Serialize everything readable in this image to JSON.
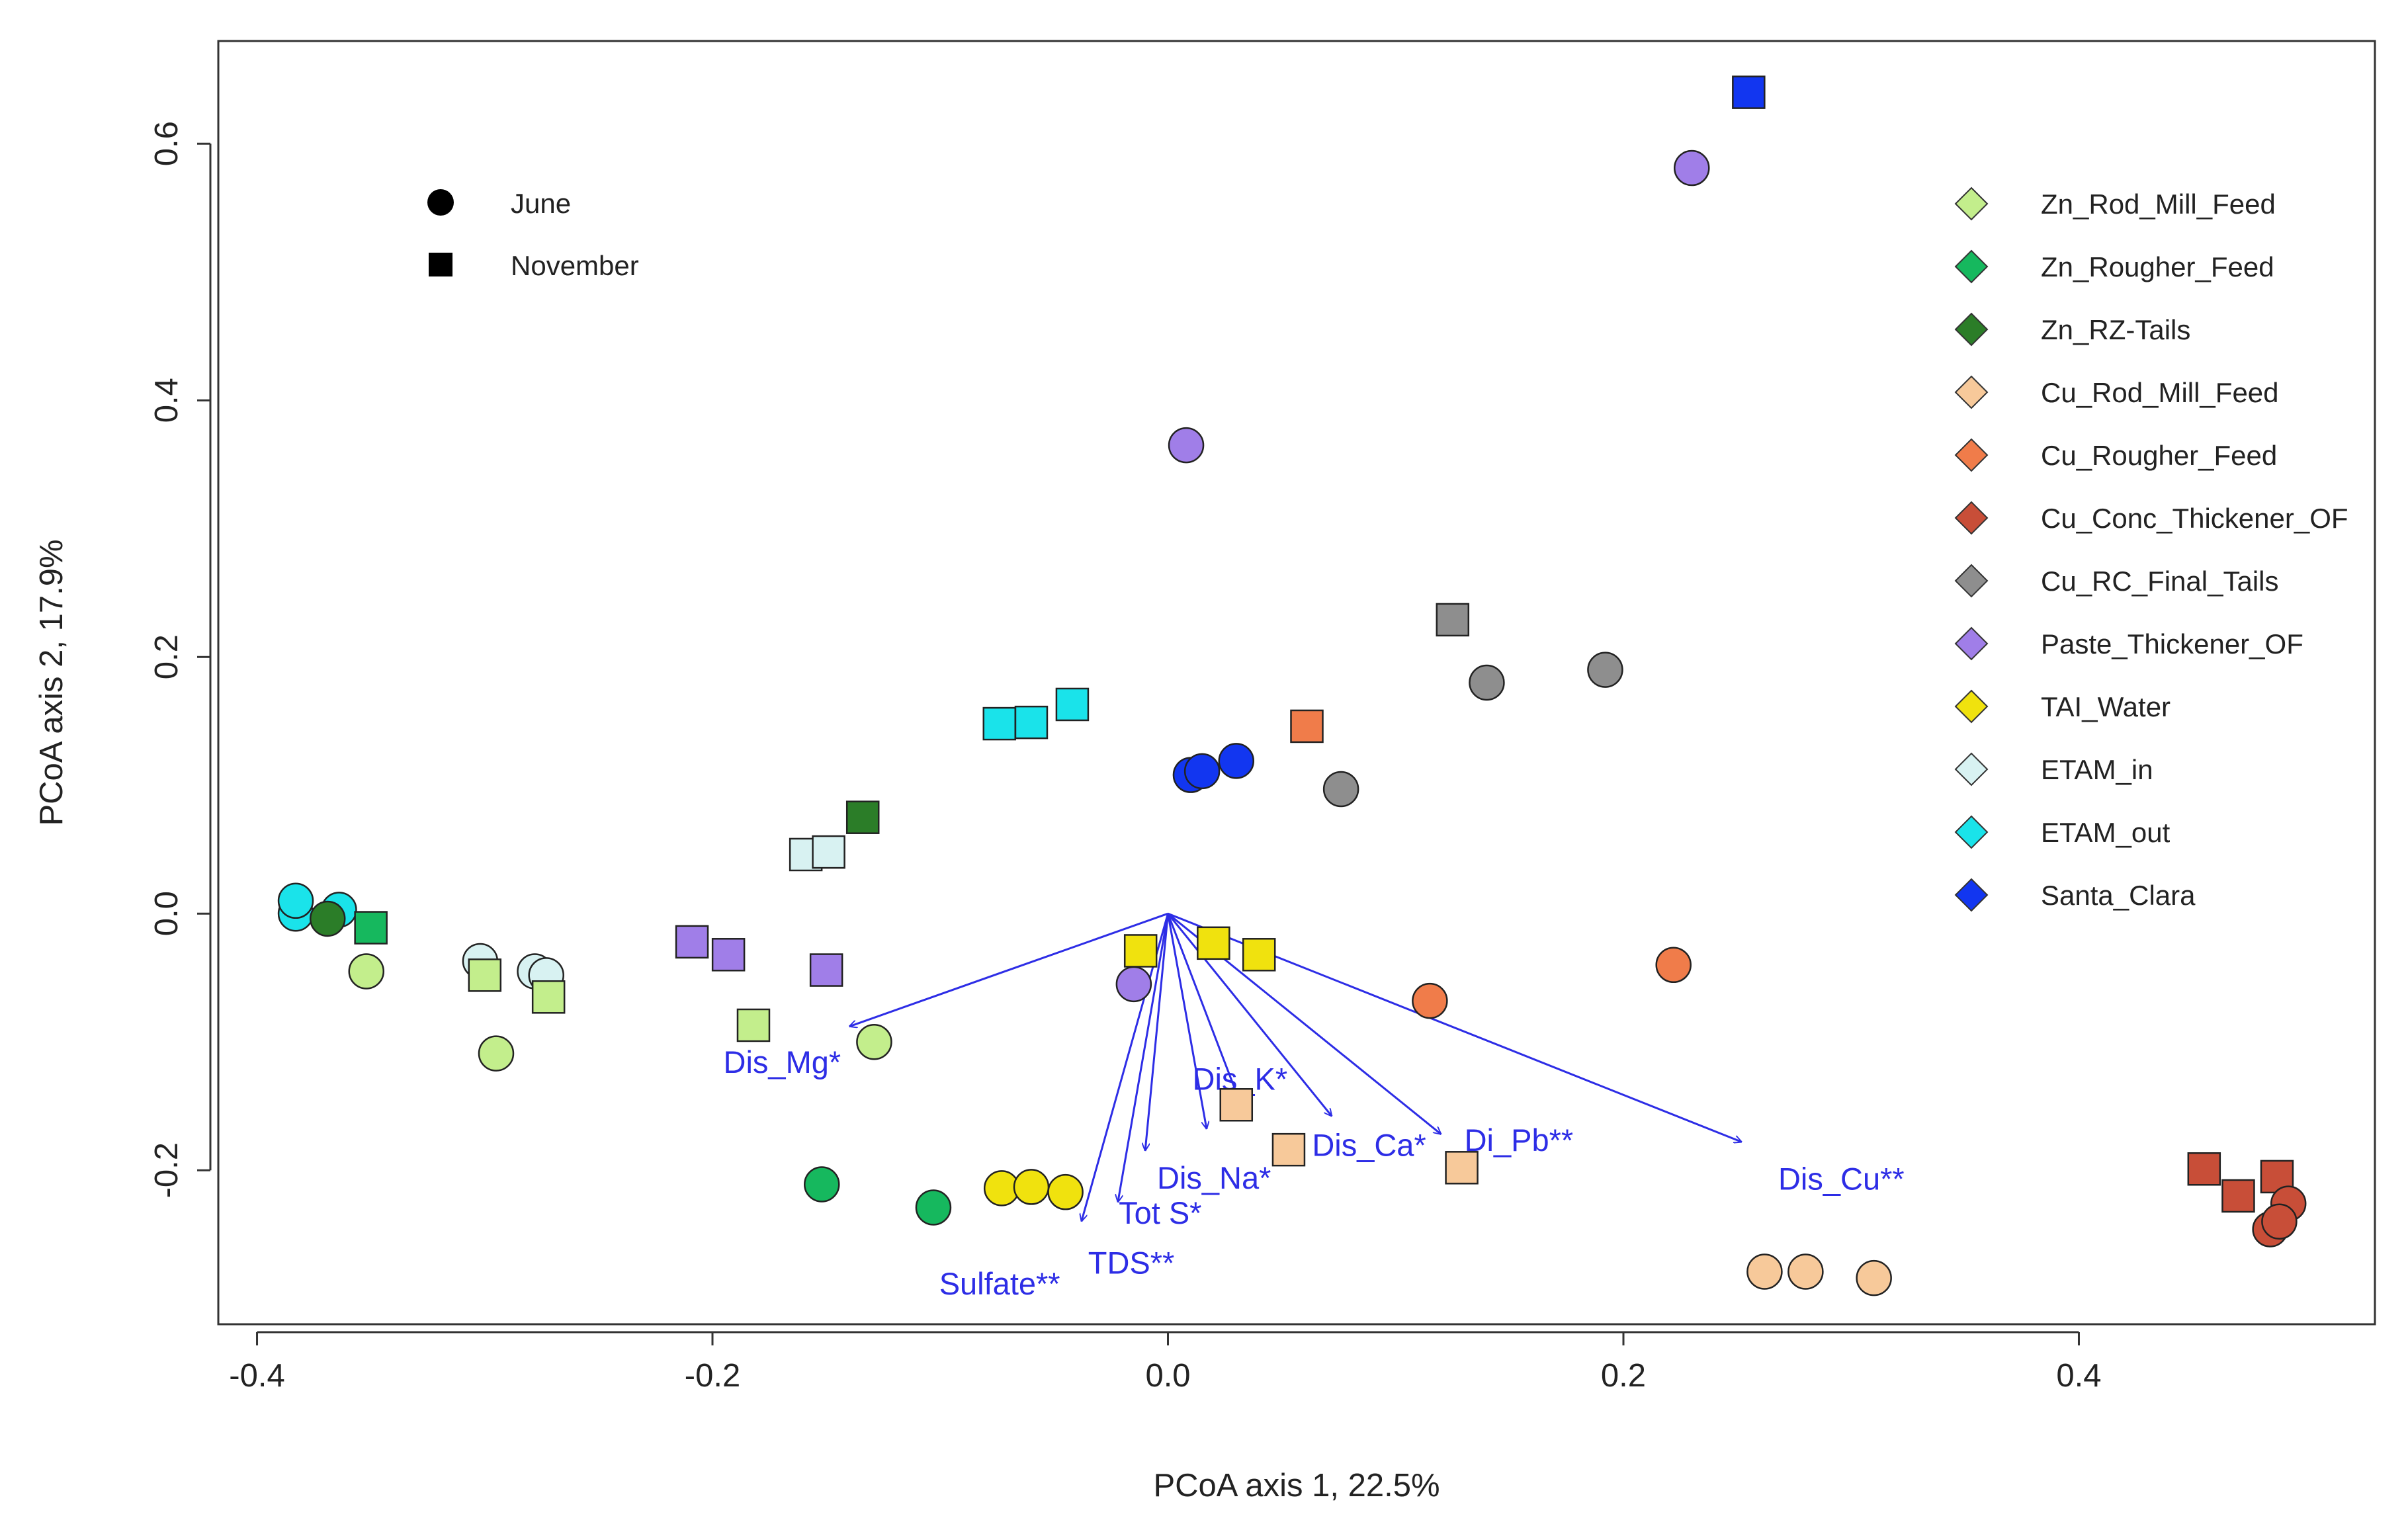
{
  "chart_data": {
    "type": "scatter",
    "title": "",
    "xlabel": "PCoA axis 1, 22.5%",
    "ylabel": "PCoA axis 2, 17.9%",
    "xlim": [
      -0.417,
      0.53
    ],
    "ylim": [
      -0.32,
      0.68
    ],
    "x_ticks": [
      -0.4,
      -0.2,
      0.0,
      0.2,
      0.4
    ],
    "x_tick_labels": [
      "-0.4",
      "-0.2",
      "0.0",
      "0.2",
      "0.4"
    ],
    "y_ticks": [
      -0.2,
      0.0,
      0.2,
      0.4,
      0.6
    ],
    "y_tick_labels": [
      "-0.2",
      "0.0",
      "0.2",
      "0.4",
      "0.6"
    ],
    "shape_legend": [
      {
        "label": "June",
        "shape": "circle"
      },
      {
        "label": "November",
        "shape": "square"
      }
    ],
    "groups": [
      {
        "name": "Zn_Rod_Mill_Feed",
        "color": "#c3ee8c"
      },
      {
        "name": "Zn_Rougher_Feed",
        "color": "#16b85e"
      },
      {
        "name": "Zn_RZ-Tails",
        "color": "#2b7d28"
      },
      {
        "name": "Cu_Rod_Mill_Feed",
        "color": "#f7c99a"
      },
      {
        "name": "Cu_Rougher_Feed",
        "color": "#f07c4a"
      },
      {
        "name": "Cu_Conc_Thickener_OF",
        "color": "#c84e38"
      },
      {
        "name": "Cu_RC_Final_Tails",
        "color": "#8e8e8e"
      },
      {
        "name": "Paste_Thickener_OF",
        "color": "#a07ee8"
      },
      {
        "name": "TAI_Water",
        "color": "#f0e20e"
      },
      {
        "name": "ETAM_in",
        "color": "#d8f2f2"
      },
      {
        "name": "ETAM_out",
        "color": "#1ae3ea"
      },
      {
        "name": "Santa_Clara",
        "color": "#1236f0"
      }
    ],
    "points": [
      {
        "x": -0.383,
        "y": 0.0,
        "group": "ETAM_out",
        "shape": "circle"
      },
      {
        "x": -0.383,
        "y": 0.01,
        "group": "ETAM_out",
        "shape": "circle"
      },
      {
        "x": -0.364,
        "y": 0.003,
        "group": "ETAM_out",
        "shape": "circle"
      },
      {
        "x": -0.369,
        "y": -0.004,
        "group": "Zn_RZ-Tails",
        "shape": "circle"
      },
      {
        "x": -0.352,
        "y": -0.045,
        "group": "Zn_Rod_Mill_Feed",
        "shape": "circle"
      },
      {
        "x": -0.35,
        "y": -0.011,
        "group": "Zn_Rougher_Feed",
        "shape": "square"
      },
      {
        "x": -0.302,
        "y": -0.037,
        "group": "ETAM_in",
        "shape": "circle"
      },
      {
        "x": -0.3,
        "y": -0.048,
        "group": "Zn_Rod_Mill_Feed",
        "shape": "square"
      },
      {
        "x": -0.278,
        "y": -0.045,
        "group": "ETAM_in",
        "shape": "circle"
      },
      {
        "x": -0.273,
        "y": -0.048,
        "group": "ETAM_in",
        "shape": "circle"
      },
      {
        "x": -0.272,
        "y": -0.065,
        "group": "Zn_Rod_Mill_Feed",
        "shape": "square"
      },
      {
        "x": -0.295,
        "y": -0.109,
        "group": "Zn_Rod_Mill_Feed",
        "shape": "circle"
      },
      {
        "x": -0.209,
        "y": -0.022,
        "group": "Paste_Thickener_OF",
        "shape": "square"
      },
      {
        "x": -0.193,
        "y": -0.032,
        "group": "Paste_Thickener_OF",
        "shape": "square"
      },
      {
        "x": -0.182,
        "y": -0.087,
        "group": "Zn_Rod_Mill_Feed",
        "shape": "square"
      },
      {
        "x": -0.15,
        "y": -0.044,
        "group": "Paste_Thickener_OF",
        "shape": "square"
      },
      {
        "x": -0.129,
        "y": -0.1,
        "group": "Zn_Rod_Mill_Feed",
        "shape": "circle"
      },
      {
        "x": -0.159,
        "y": 0.046,
        "group": "ETAM_in",
        "shape": "square"
      },
      {
        "x": -0.149,
        "y": 0.048,
        "group": "ETAM_in",
        "shape": "square"
      },
      {
        "x": -0.134,
        "y": 0.075,
        "group": "Zn_RZ-Tails",
        "shape": "square"
      },
      {
        "x": -0.152,
        "y": -0.211,
        "group": "Zn_Rougher_Feed",
        "shape": "circle"
      },
      {
        "x": -0.103,
        "y": -0.229,
        "group": "Zn_Rougher_Feed",
        "shape": "circle"
      },
      {
        "x": -0.073,
        "y": -0.214,
        "group": "TAI_Water",
        "shape": "circle"
      },
      {
        "x": -0.06,
        "y": -0.213,
        "group": "TAI_Water",
        "shape": "circle"
      },
      {
        "x": -0.045,
        "y": -0.217,
        "group": "TAI_Water",
        "shape": "circle"
      },
      {
        "x": -0.074,
        "y": 0.148,
        "group": "ETAM_out",
        "shape": "square"
      },
      {
        "x": -0.06,
        "y": 0.149,
        "group": "ETAM_out",
        "shape": "square"
      },
      {
        "x": -0.042,
        "y": 0.163,
        "group": "ETAM_out",
        "shape": "square"
      },
      {
        "x": -0.012,
        "y": -0.029,
        "group": "TAI_Water",
        "shape": "square"
      },
      {
        "x": 0.02,
        "y": -0.023,
        "group": "TAI_Water",
        "shape": "square"
      },
      {
        "x": 0.04,
        "y": -0.032,
        "group": "TAI_Water",
        "shape": "square"
      },
      {
        "x": -0.015,
        "y": -0.055,
        "group": "Paste_Thickener_OF",
        "shape": "circle"
      },
      {
        "x": 0.03,
        "y": -0.149,
        "group": "Cu_Rod_Mill_Feed",
        "shape": "square"
      },
      {
        "x": 0.053,
        "y": -0.184,
        "group": "Cu_Rod_Mill_Feed",
        "shape": "square"
      },
      {
        "x": 0.129,
        "y": -0.198,
        "group": "Cu_Rod_Mill_Feed",
        "shape": "square"
      },
      {
        "x": 0.01,
        "y": 0.108,
        "group": "Santa_Clara",
        "shape": "circle"
      },
      {
        "x": 0.015,
        "y": 0.111,
        "group": "Santa_Clara",
        "shape": "circle"
      },
      {
        "x": 0.03,
        "y": 0.119,
        "group": "Santa_Clara",
        "shape": "circle"
      },
      {
        "x": 0.008,
        "y": 0.365,
        "group": "Paste_Thickener_OF",
        "shape": "circle"
      },
      {
        "x": 0.061,
        "y": 0.146,
        "group": "Cu_Rougher_Feed",
        "shape": "square"
      },
      {
        "x": 0.076,
        "y": 0.097,
        "group": "Cu_RC_Final_Tails",
        "shape": "circle"
      },
      {
        "x": 0.125,
        "y": 0.229,
        "group": "Cu_RC_Final_Tails",
        "shape": "square"
      },
      {
        "x": 0.14,
        "y": 0.18,
        "group": "Cu_RC_Final_Tails",
        "shape": "circle"
      },
      {
        "x": 0.192,
        "y": 0.19,
        "group": "Cu_RC_Final_Tails",
        "shape": "circle"
      },
      {
        "x": 0.115,
        "y": -0.068,
        "group": "Cu_Rougher_Feed",
        "shape": "circle"
      },
      {
        "x": 0.222,
        "y": -0.04,
        "group": "Cu_Rougher_Feed",
        "shape": "circle"
      },
      {
        "x": 0.23,
        "y": 0.581,
        "group": "Paste_Thickener_OF",
        "shape": "circle"
      },
      {
        "x": 0.255,
        "y": 0.64,
        "group": "Santa_Clara",
        "shape": "square"
      },
      {
        "x": 0.262,
        "y": -0.279,
        "group": "Cu_Rod_Mill_Feed",
        "shape": "circle"
      },
      {
        "x": 0.28,
        "y": -0.279,
        "group": "Cu_Rod_Mill_Feed",
        "shape": "circle"
      },
      {
        "x": 0.31,
        "y": -0.284,
        "group": "Cu_Rod_Mill_Feed",
        "shape": "circle"
      },
      {
        "x": 0.455,
        "y": -0.199,
        "group": "Cu_Conc_Thickener_OF",
        "shape": "square"
      },
      {
        "x": 0.47,
        "y": -0.22,
        "group": "Cu_Conc_Thickener_OF",
        "shape": "square"
      },
      {
        "x": 0.487,
        "y": -0.205,
        "group": "Cu_Conc_Thickener_OF",
        "shape": "square"
      },
      {
        "x": 0.492,
        "y": -0.226,
        "group": "Cu_Conc_Thickener_OF",
        "shape": "circle"
      },
      {
        "x": 0.484,
        "y": -0.246,
        "group": "Cu_Conc_Thickener_OF",
        "shape": "circle"
      },
      {
        "x": 0.488,
        "y": -0.24,
        "group": "Cu_Conc_Thickener_OF",
        "shape": "circle"
      }
    ],
    "vectors": [
      {
        "label": "Dis_Mg*",
        "x": -0.14,
        "y": -0.088
      },
      {
        "label": "Dis_K*",
        "x": 0.034,
        "y": -0.158
      },
      {
        "label": "Dis_Na*",
        "x": 0.017,
        "y": -0.168
      },
      {
        "label": "Tot  S*",
        "x": -0.01,
        "y": -0.185
      },
      {
        "label": "TDS**",
        "x": -0.022,
        "y": -0.225
      },
      {
        "label": "Sulfate**",
        "x": -0.038,
        "y": -0.24
      },
      {
        "label": "Dis_Ca*",
        "x": 0.072,
        "y": -0.158
      },
      {
        "label": "Di_Pb**",
        "x": 0.12,
        "y": -0.172
      },
      {
        "label": "Dis_Cu**",
        "x": 0.252,
        "y": -0.178
      }
    ]
  }
}
